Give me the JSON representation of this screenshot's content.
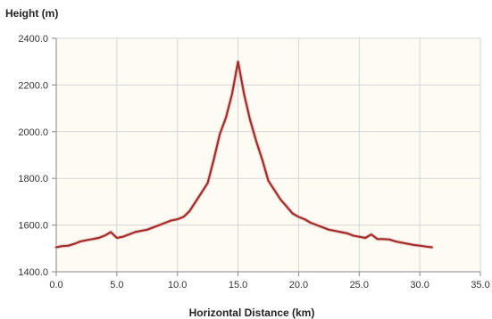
{
  "chart_data": {
    "type": "line",
    "title": "",
    "xlabel": "Horizontal Distance (km)",
    "ylabel": "Height (m)",
    "xlim": [
      0,
      35
    ],
    "ylim": [
      1400,
      2400
    ],
    "x_ticks": [
      "0.0",
      "5.0",
      "10.0",
      "15.0",
      "20.0",
      "25.0",
      "30.0",
      "35.0"
    ],
    "y_ticks": [
      "1400.0",
      "1600.0",
      "1800.0",
      "2000.0",
      "2200.0",
      "2400.0"
    ],
    "grid": true,
    "legend": "none",
    "colors": {
      "line": "#a32b2b",
      "plot_background": "#fdfbf2",
      "grid": "#d6d6d6",
      "axis": "#888888"
    },
    "series": [
      {
        "x": [
          0.0,
          0.5,
          1.0,
          1.5,
          2.0,
          2.5,
          3.0,
          3.5,
          4.0,
          4.5,
          5.0,
          5.5,
          6.0,
          6.5,
          7.0,
          7.5,
          8.0,
          8.5,
          9.0,
          9.5,
          10.0,
          10.5,
          11.0,
          11.5,
          12.0,
          12.5,
          13.0,
          13.5,
          14.0,
          14.5,
          15.0,
          15.5,
          16.0,
          16.5,
          17.0,
          17.5,
          18.0,
          18.5,
          19.0,
          19.5,
          20.0,
          20.5,
          21.0,
          21.5,
          22.0,
          22.5,
          23.0,
          23.5,
          24.0,
          24.5,
          25.0,
          25.5,
          26.0,
          26.5,
          27.0,
          27.5,
          28.0,
          28.5,
          29.0,
          29.5,
          30.0,
          30.5,
          31.0
        ],
        "y": [
          1505,
          1510,
          1512,
          1520,
          1530,
          1535,
          1540,
          1545,
          1555,
          1570,
          1545,
          1550,
          1560,
          1570,
          1575,
          1580,
          1590,
          1600,
          1610,
          1620,
          1625,
          1635,
          1660,
          1700,
          1740,
          1780,
          1880,
          1990,
          2060,
          2160,
          2300,
          2160,
          2050,
          1960,
          1880,
          1790,
          1750,
          1710,
          1680,
          1650,
          1635,
          1625,
          1610,
          1600,
          1590,
          1580,
          1575,
          1570,
          1565,
          1555,
          1550,
          1545,
          1560,
          1540,
          1540,
          1538,
          1530,
          1525,
          1520,
          1515,
          1512,
          1508,
          1505
        ]
      }
    ]
  }
}
